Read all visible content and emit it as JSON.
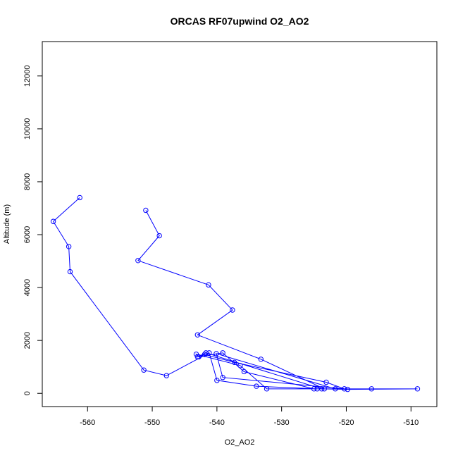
{
  "chart_data": {
    "type": "scatter",
    "title": "ORCAS RF07upwind O2_AO2",
    "xlabel": "O2_AO2",
    "ylabel": "Altitude (m)",
    "xlim": [
      -567,
      -506
    ],
    "ylim": [
      -500,
      13300
    ],
    "x_ticks": [
      -560,
      -550,
      -540,
      -530,
      -520,
      -510
    ],
    "y_ticks": [
      0,
      2000,
      4000,
      6000,
      8000,
      10000,
      12000
    ],
    "x_tick_labels": [
      "-560",
      "-550",
      "-540",
      "-530",
      "-520",
      "-510"
    ],
    "y_tick_labels": [
      "0",
      "2000",
      "4000",
      "6000",
      "8000",
      "10000",
      "12000"
    ],
    "grid": false,
    "connect_points": true,
    "marker": "open-circle",
    "series": [
      {
        "color": "#0000ff",
        "x": [
          -561.2,
          -565.3,
          -562.9,
          -562.7,
          -551.3,
          -547.8,
          -541.2,
          -540.0,
          -533.9,
          -524.5,
          -516.1,
          -509.0,
          -519.8,
          -523.8,
          -541.7,
          -543.0,
          -541.9,
          -537.3,
          -523.1,
          -520.3,
          -539.1,
          -540.1,
          -521.7,
          -532.3,
          -536.4,
          -543.2,
          -542.8,
          -539.1,
          -535.8,
          -525.0,
          -523.4,
          -533.2,
          -543.0,
          -537.6,
          -541.3,
          -552.2,
          -548.9,
          -551.0
        ],
        "y": [
          7400,
          6500,
          5550,
          4600,
          880,
          670,
          1530,
          490,
          270,
          170,
          170,
          170,
          150,
          170,
          1530,
          1380,
          1470,
          1170,
          420,
          170,
          600,
          1500,
          170,
          170,
          1050,
          1480,
          1380,
          1530,
          820,
          170,
          170,
          1290,
          2210,
          3150,
          4100,
          5020,
          5960,
          6920
        ]
      }
    ]
  }
}
